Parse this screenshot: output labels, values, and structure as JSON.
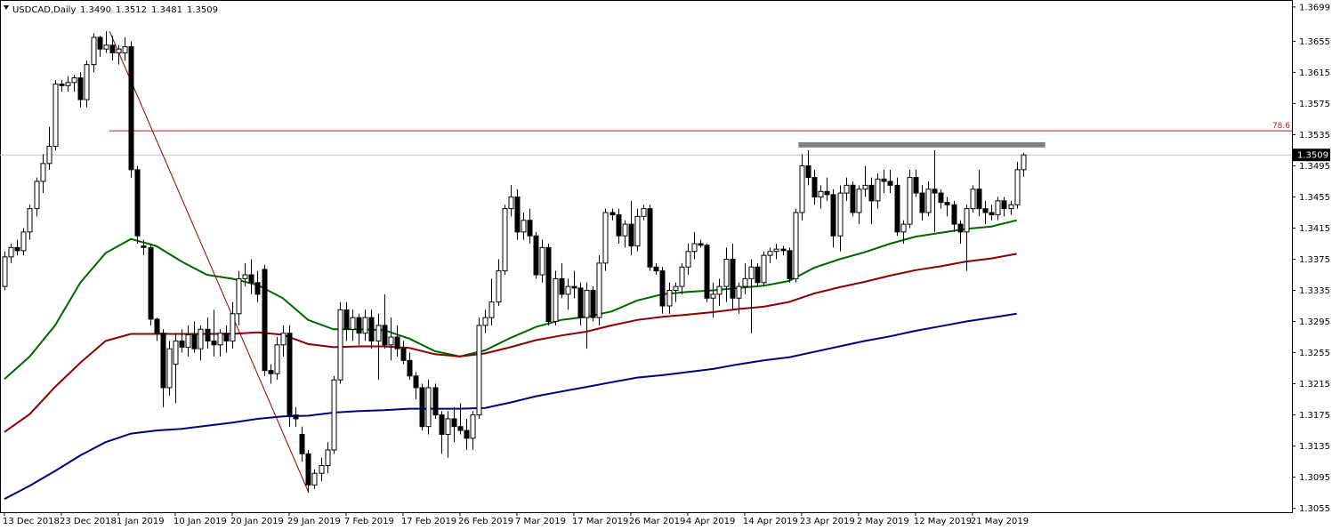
{
  "chart_data": {
    "type": "candlestick",
    "title": "USDCAD,Daily",
    "header_values": [
      "1.3490",
      "1.3512",
      "1.3481",
      "1.3509"
    ],
    "ylim": [
      1.305,
      1.3708
    ],
    "xlim": [
      -0.7,
      203.5
    ],
    "yticks": [
      1.3699,
      1.3655,
      1.3615,
      1.3575,
      1.3535,
      1.3495,
      1.3455,
      1.3415,
      1.3375,
      1.3335,
      1.3295,
      1.3255,
      1.3215,
      1.3175,
      1.3135,
      1.3095,
      1.3055
    ],
    "xticks": [
      {
        "value": 0,
        "label": "13 Dec 2018"
      },
      {
        "value": 9,
        "label": "23 Dec 2018"
      },
      {
        "value": 18,
        "label": "1 Jan 2019"
      },
      {
        "value": 27,
        "label": "10 Jan 2019"
      },
      {
        "value": 36,
        "label": "20 Jan 2019"
      },
      {
        "value": 45,
        "label": "29 Jan 2019"
      },
      {
        "value": 54,
        "label": "7 Feb 2019"
      },
      {
        "value": 63,
        "label": "17 Feb 2019"
      },
      {
        "value": 72,
        "label": "26 Feb 2019"
      },
      {
        "value": 81,
        "label": "7 Mar 2019"
      },
      {
        "value": 90,
        "label": "17 Mar 2019"
      },
      {
        "value": 99,
        "label": "26 Mar 2019"
      },
      {
        "value": 108,
        "label": "4 Apr 2019"
      },
      {
        "value": 117,
        "label": "14 Apr 2019"
      },
      {
        "value": 126,
        "label": "23 Apr 2019"
      },
      {
        "value": 135,
        "label": "2 May 2019"
      },
      {
        "value": 144,
        "label": "12 May 2019"
      },
      {
        "value": 153,
        "label": "21 May 2019"
      }
    ],
    "bull_color": "#ffffff",
    "bear_color": "#000000",
    "candles": [
      [
        1.334,
        1.3385,
        1.3335,
        1.3378
      ],
      [
        1.3378,
        1.3395,
        1.337,
        1.339
      ],
      [
        1.339,
        1.34,
        1.338,
        1.3386
      ],
      [
        1.3386,
        1.3415,
        1.338,
        1.341
      ],
      [
        1.341,
        1.3445,
        1.34,
        1.344
      ],
      [
        1.344,
        1.348,
        1.343,
        1.3475
      ],
      [
        1.3475,
        1.351,
        1.346,
        1.3498
      ],
      [
        1.3498,
        1.3545,
        1.349,
        1.352
      ],
      [
        1.352,
        1.3605,
        1.3515,
        1.36
      ],
      [
        1.36,
        1.3605,
        1.359,
        1.3598
      ],
      [
        1.3598,
        1.361,
        1.359,
        1.3602
      ],
      [
        1.3602,
        1.3612,
        1.359,
        1.3608
      ],
      [
        1.3608,
        1.3615,
        1.357,
        1.358
      ],
      [
        1.358,
        1.363,
        1.357,
        1.3625
      ],
      [
        1.3625,
        1.3665,
        1.3615,
        1.366
      ],
      [
        1.366,
        1.3662,
        1.3635,
        1.3645
      ],
      [
        1.3645,
        1.3668,
        1.364,
        1.365
      ],
      [
        1.365,
        1.3662,
        1.363,
        1.364
      ],
      [
        1.364,
        1.365,
        1.3625,
        1.3645
      ],
      [
        1.364,
        1.366,
        1.363,
        1.3648
      ],
      [
        1.3648,
        1.3655,
        1.348,
        1.349
      ],
      [
        1.349,
        1.3495,
        1.3395,
        1.3405
      ],
      [
        1.3392,
        1.34,
        1.338,
        1.339
      ],
      [
        1.339,
        1.3395,
        1.329,
        1.3298
      ],
      [
        1.3298,
        1.33,
        1.327,
        1.328
      ],
      [
        1.328,
        1.3285,
        1.3185,
        1.321
      ],
      [
        1.321,
        1.327,
        1.32,
        1.326
      ],
      [
        1.324,
        1.328,
        1.319,
        1.327
      ],
      [
        1.327,
        1.3285,
        1.3255,
        1.3262
      ],
      [
        1.3262,
        1.329,
        1.325,
        1.3278
      ],
      [
        1.3278,
        1.3295,
        1.3255,
        1.326
      ],
      [
        1.326,
        1.329,
        1.3245,
        1.3285
      ],
      [
        1.3285,
        1.33,
        1.326,
        1.327
      ],
      [
        1.327,
        1.331,
        1.325,
        1.3265
      ],
      [
        1.3265,
        1.3285,
        1.325,
        1.328
      ],
      [
        1.328,
        1.329,
        1.3255,
        1.327
      ],
      [
        1.327,
        1.332,
        1.326,
        1.3305
      ],
      [
        1.3305,
        1.336,
        1.329,
        1.335
      ],
      [
        1.335,
        1.337,
        1.334,
        1.3355
      ],
      [
        1.3355,
        1.3375,
        1.333,
        1.3345
      ],
      [
        1.3345,
        1.336,
        1.332,
        1.333
      ],
      [
        1.3362,
        1.3368,
        1.3225,
        1.3232
      ],
      [
        1.3232,
        1.324,
        1.3215,
        1.3228
      ],
      [
        1.3228,
        1.3275,
        1.322,
        1.3265
      ],
      [
        1.3265,
        1.329,
        1.325,
        1.328
      ],
      [
        1.328,
        1.329,
        1.316,
        1.3175
      ],
      [
        1.3175,
        1.3185,
        1.316,
        1.317
      ],
      [
        1.315,
        1.316,
        1.3115,
        1.3125
      ],
      [
        1.3125,
        1.313,
        1.3075,
        1.3085
      ],
      [
        1.3085,
        1.3105,
        1.308,
        1.31
      ],
      [
        1.31,
        1.312,
        1.309,
        1.311
      ],
      [
        1.311,
        1.314,
        1.31,
        1.313
      ],
      [
        1.313,
        1.3225,
        1.3125,
        1.322
      ],
      [
        1.322,
        1.332,
        1.3215,
        1.331
      ],
      [
        1.331,
        1.332,
        1.327,
        1.3285
      ],
      [
        1.3285,
        1.331,
        1.327,
        1.33
      ],
      [
        1.33,
        1.3305,
        1.3265,
        1.328
      ],
      [
        1.328,
        1.331,
        1.327,
        1.33
      ],
      [
        1.33,
        1.331,
        1.326,
        1.327
      ],
      [
        1.327,
        1.3305,
        1.322,
        1.329
      ],
      [
        1.329,
        1.333,
        1.326,
        1.3265
      ],
      [
        1.3265,
        1.33,
        1.3245,
        1.3275
      ],
      [
        1.3275,
        1.329,
        1.325,
        1.326
      ],
      [
        1.326,
        1.327,
        1.324,
        1.3245
      ],
      [
        1.3245,
        1.3255,
        1.322,
        1.3225
      ],
      [
        1.3225,
        1.323,
        1.3195,
        1.321
      ],
      [
        1.321,
        1.3215,
        1.3155,
        1.316
      ],
      [
        1.316,
        1.322,
        1.315,
        1.321
      ],
      [
        1.321,
        1.3215,
        1.317,
        1.3175
      ],
      [
        1.3175,
        1.318,
        1.3125,
        1.315
      ],
      [
        1.315,
        1.318,
        1.312,
        1.317
      ],
      [
        1.317,
        1.3185,
        1.314,
        1.316
      ],
      [
        1.316,
        1.319,
        1.315,
        1.3155
      ],
      [
        1.3155,
        1.317,
        1.313,
        1.3145
      ],
      [
        1.3145,
        1.318,
        1.313,
        1.3175
      ],
      [
        1.3175,
        1.33,
        1.317,
        1.329
      ],
      [
        1.329,
        1.331,
        1.328,
        1.33
      ],
      [
        1.33,
        1.335,
        1.329,
        1.332
      ],
      [
        1.332,
        1.3375,
        1.3315,
        1.336
      ],
      [
        1.336,
        1.3445,
        1.3355,
        1.344
      ],
      [
        1.344,
        1.347,
        1.343,
        1.3455
      ],
      [
        1.3455,
        1.3465,
        1.34,
        1.341
      ],
      [
        1.341,
        1.3435,
        1.34,
        1.3425
      ],
      [
        1.3425,
        1.344,
        1.3395,
        1.3405
      ],
      [
        1.3405,
        1.341,
        1.335,
        1.3355
      ],
      [
        1.3355,
        1.34,
        1.3345,
        1.339
      ],
      [
        1.339,
        1.3395,
        1.329,
        1.3295
      ],
      [
        1.3295,
        1.336,
        1.329,
        1.335
      ],
      [
        1.335,
        1.337,
        1.3325,
        1.333
      ],
      [
        1.333,
        1.335,
        1.331,
        1.334
      ],
      [
        1.334,
        1.336,
        1.3325,
        1.3338
      ],
      [
        1.3338,
        1.3345,
        1.329,
        1.33
      ],
      [
        1.33,
        1.3345,
        1.326,
        1.3335
      ],
      [
        1.3335,
        1.334,
        1.3295,
        1.33
      ],
      [
        1.33,
        1.338,
        1.329,
        1.337
      ],
      [
        1.337,
        1.344,
        1.336,
        1.3435
      ],
      [
        1.3435,
        1.344,
        1.3425,
        1.3432
      ],
      [
        1.3432,
        1.344,
        1.3395,
        1.3405
      ],
      [
        1.3405,
        1.3425,
        1.339,
        1.342
      ],
      [
        1.342,
        1.345,
        1.338,
        1.3392
      ],
      [
        1.3392,
        1.344,
        1.3385,
        1.343
      ],
      [
        1.343,
        1.3445,
        1.3425,
        1.344
      ],
      [
        1.344,
        1.3445,
        1.336,
        1.3365
      ],
      [
        1.3365,
        1.337,
        1.3355,
        1.336
      ],
      [
        1.336,
        1.3365,
        1.3305,
        1.3315
      ],
      [
        1.3315,
        1.3345,
        1.3305,
        1.3335
      ],
      [
        1.3335,
        1.3345,
        1.332,
        1.334
      ],
      [
        1.334,
        1.337,
        1.333,
        1.3365
      ],
      [
        1.3365,
        1.3395,
        1.3355,
        1.3385
      ],
      [
        1.3385,
        1.341,
        1.3375,
        1.3395
      ],
      [
        1.3395,
        1.34,
        1.339,
        1.3393
      ],
      [
        1.3393,
        1.3395,
        1.332,
        1.3325
      ],
      [
        1.3325,
        1.3345,
        1.33,
        1.333
      ],
      [
        1.333,
        1.335,
        1.3315,
        1.334
      ],
      [
        1.334,
        1.339,
        1.332,
        1.3375
      ],
      [
        1.3375,
        1.3395,
        1.331,
        1.3325
      ],
      [
        1.3325,
        1.3345,
        1.3305,
        1.334
      ],
      [
        1.334,
        1.337,
        1.333,
        1.335
      ],
      [
        1.335,
        1.3375,
        1.328,
        1.3365
      ],
      [
        1.3365,
        1.337,
        1.334,
        1.3345
      ],
      [
        1.3345,
        1.3385,
        1.334,
        1.338
      ],
      [
        1.338,
        1.339,
        1.337,
        1.3385
      ],
      [
        1.3385,
        1.3395,
        1.3375,
        1.3388
      ],
      [
        1.3388,
        1.3392,
        1.338,
        1.3386
      ],
      [
        1.3386,
        1.339,
        1.3345,
        1.335
      ],
      [
        1.335,
        1.344,
        1.3345,
        1.3435
      ],
      [
        1.3435,
        1.351,
        1.3425,
        1.3495
      ],
      [
        1.3495,
        1.3515,
        1.347,
        1.348
      ],
      [
        1.348,
        1.349,
        1.3445,
        1.3455
      ],
      [
        1.3455,
        1.347,
        1.344,
        1.3462
      ],
      [
        1.3462,
        1.348,
        1.345,
        1.3458
      ],
      [
        1.3458,
        1.3465,
        1.339,
        1.3405
      ],
      [
        1.3405,
        1.347,
        1.3385,
        1.346
      ],
      [
        1.346,
        1.348,
        1.345,
        1.347
      ],
      [
        1.347,
        1.3475,
        1.343,
        1.3435
      ],
      [
        1.3435,
        1.347,
        1.342,
        1.3465
      ],
      [
        1.3465,
        1.3495,
        1.3455,
        1.347
      ],
      [
        1.347,
        1.348,
        1.342,
        1.345
      ],
      [
        1.345,
        1.3485,
        1.344,
        1.3478
      ],
      [
        1.3478,
        1.349,
        1.346,
        1.3475
      ],
      [
        1.3475,
        1.349,
        1.346,
        1.347
      ],
      [
        1.347,
        1.348,
        1.3405,
        1.341
      ],
      [
        1.341,
        1.3425,
        1.3395,
        1.342
      ],
      [
        1.342,
        1.349,
        1.3415,
        1.348
      ],
      [
        1.348,
        1.349,
        1.3455,
        1.346
      ],
      [
        1.346,
        1.347,
        1.3425,
        1.3435
      ],
      [
        1.3435,
        1.3475,
        1.343,
        1.3465
      ],
      [
        1.3465,
        1.3515,
        1.341,
        1.346
      ],
      [
        1.346,
        1.3465,
        1.344,
        1.3448
      ],
      [
        1.3448,
        1.3455,
        1.343,
        1.3445
      ],
      [
        1.3445,
        1.345,
        1.341,
        1.342
      ],
      [
        1.342,
        1.3425,
        1.3395,
        1.341
      ],
      [
        1.341,
        1.3445,
        1.336,
        1.344
      ],
      [
        1.344,
        1.347,
        1.3435,
        1.3465
      ],
      [
        1.3465,
        1.349,
        1.343,
        1.344
      ],
      [
        1.344,
        1.345,
        1.342,
        1.3435
      ],
      [
        1.3435,
        1.3445,
        1.3425,
        1.3432
      ],
      [
        1.3432,
        1.3455,
        1.3425,
        1.345
      ],
      [
        1.345,
        1.3455,
        1.343,
        1.344
      ],
      [
        1.344,
        1.345,
        1.3432,
        1.3445
      ],
      [
        1.3445,
        1.35,
        1.344,
        1.349
      ],
      [
        1.349,
        1.3512,
        1.3481,
        1.3509
      ]
    ],
    "series": [
      {
        "color": "#006400",
        "x": [
          0,
          4,
          8,
          12,
          16,
          20,
          24,
          28,
          32,
          36,
          40,
          44,
          48,
          52,
          56,
          60,
          64,
          68,
          72,
          76,
          80,
          84,
          88,
          92,
          96,
          100,
          104,
          108,
          112,
          116,
          120,
          124,
          128,
          132,
          136,
          140,
          144,
          148,
          152,
          156,
          160
        ],
        "values": [
          1.3221,
          1.325,
          1.329,
          1.3345,
          1.3383,
          1.3401,
          1.3392,
          1.3372,
          1.3355,
          1.335,
          1.3342,
          1.3325,
          1.3297,
          1.3285,
          1.3285,
          1.3284,
          1.3273,
          1.3257,
          1.325,
          1.3258,
          1.3274,
          1.3288,
          1.3297,
          1.3301,
          1.3308,
          1.3322,
          1.333,
          1.3333,
          1.3335,
          1.3338,
          1.3341,
          1.3347,
          1.3364,
          1.3375,
          1.3384,
          1.3395,
          1.3404,
          1.3409,
          1.3414,
          1.3417,
          1.3425
        ]
      },
      {
        "color": "#8b0000",
        "x": [
          0,
          4,
          8,
          12,
          16,
          20,
          24,
          28,
          32,
          36,
          40,
          44,
          48,
          52,
          56,
          60,
          64,
          68,
          72,
          76,
          80,
          84,
          88,
          92,
          96,
          100,
          104,
          108,
          112,
          116,
          120,
          124,
          128,
          132,
          136,
          140,
          144,
          148,
          152,
          156,
          160
        ],
        "values": [
          1.3153,
          1.3176,
          1.3211,
          1.3242,
          1.327,
          1.3279,
          1.3279,
          1.3279,
          1.3279,
          1.3279,
          1.3281,
          1.3278,
          1.3266,
          1.3262,
          1.3263,
          1.3263,
          1.3261,
          1.3253,
          1.325,
          1.3254,
          1.3262,
          1.3271,
          1.3277,
          1.3282,
          1.329,
          1.3297,
          1.3301,
          1.3304,
          1.3307,
          1.3311,
          1.3314,
          1.332,
          1.3331,
          1.3339,
          1.3346,
          1.3354,
          1.3361,
          1.3366,
          1.3372,
          1.3376,
          1.3382
        ]
      },
      {
        "color": "#000080",
        "x": [
          0,
          4,
          8,
          12,
          16,
          20,
          24,
          28,
          32,
          36,
          40,
          44,
          48,
          52,
          56,
          60,
          64,
          68,
          72,
          76,
          80,
          84,
          88,
          92,
          96,
          100,
          104,
          108,
          112,
          116,
          120,
          124,
          128,
          132,
          136,
          140,
          144,
          148,
          152,
          156,
          160
        ],
        "values": [
          1.3067,
          1.3084,
          1.3103,
          1.3123,
          1.314,
          1.3151,
          1.3155,
          1.3157,
          1.3161,
          1.3165,
          1.317,
          1.3173,
          1.3174,
          1.3178,
          1.318,
          1.3181,
          1.3183,
          1.3183,
          1.3183,
          1.3184,
          1.3191,
          1.3199,
          1.3205,
          1.3211,
          1.3217,
          1.3223,
          1.3226,
          1.323,
          1.3234,
          1.324,
          1.3245,
          1.3249,
          1.3256,
          1.3263,
          1.327,
          1.3276,
          1.3283,
          1.3289,
          1.3295,
          1.33,
          1.3305
        ]
      }
    ],
    "trendline": {
      "color": "#8b0000",
      "x": [
        16.6,
        48.1
      ],
      "values": [
        1.3668,
        1.3075
      ]
    },
    "fib_level": {
      "value": 1.354,
      "label": "78.6",
      "x_start": 16.6,
      "color": "#b22222"
    },
    "resistance": {
      "value": 1.3522,
      "x": [
        125.5,
        164.5
      ],
      "color": "#808080"
    },
    "current_price": {
      "value": 1.3509,
      "label": "1.3509",
      "color": "#c0c0c0"
    }
  }
}
